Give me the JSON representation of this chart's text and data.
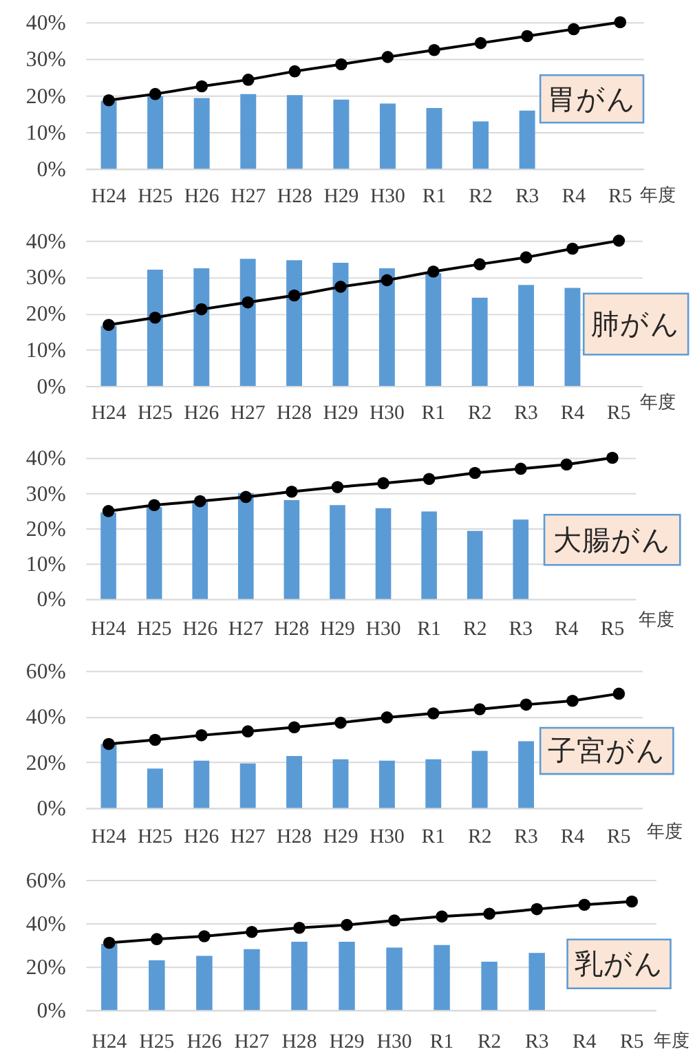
{
  "chart_data": [
    {
      "type": "bar",
      "title": "胃がん",
      "xlabel": "年度",
      "categories": [
        "H24",
        "H25",
        "H26",
        "H27",
        "H28",
        "H29",
        "H30",
        "R1",
        "R2",
        "R3",
        "R4",
        "R5"
      ],
      "series": [
        {
          "color": "#5b9bd5",
          "values": [
            18.5,
            19.8,
            19.3,
            20.4,
            20.1,
            18.9,
            17.8,
            16.6,
            12.9,
            15.9,
            null,
            null
          ]
        },
        {
          "type": "line",
          "color": "#000000",
          "values": [
            18.7,
            20.4,
            22.5,
            24.3,
            26.6,
            28.5,
            30.5,
            32.4,
            34.3,
            36.2,
            38.1,
            40
          ]
        }
      ],
      "ylim": [
        0,
        40
      ],
      "yticks": [
        {
          "value": 0,
          "label": "0%"
        },
        {
          "value": 10,
          "label": "10%"
        },
        {
          "value": 20,
          "label": "20%"
        },
        {
          "value": 30,
          "label": "30%"
        },
        {
          "value": 40,
          "label": "40%"
        }
      ],
      "grid": "y",
      "marker": "circle"
    },
    {
      "type": "bar",
      "title": "肺がん",
      "xlabel": "年度",
      "categories": [
        "H24",
        "H25",
        "H26",
        "H27",
        "H28",
        "H29",
        "H30",
        "R1",
        "R2",
        "R3",
        "R4",
        "R5"
      ],
      "series": [
        {
          "color": "#5b9bd5",
          "values": [
            16.5,
            32.0,
            32.4,
            35.0,
            34.6,
            33.9,
            32.4,
            31.0,
            24.3,
            27.8,
            27.0,
            null
          ]
        },
        {
          "type": "line",
          "color": "#000000",
          "values": [
            16.8,
            18.8,
            21.1,
            23.0,
            24.9,
            27.3,
            29.1,
            31.5,
            33.5,
            35.4,
            37.8,
            40
          ]
        }
      ],
      "ylim": [
        0,
        40
      ],
      "yticks": [
        {
          "value": 0,
          "label": "0%"
        },
        {
          "value": 10,
          "label": "10%"
        },
        {
          "value": 20,
          "label": "20%"
        },
        {
          "value": 30,
          "label": "30%"
        },
        {
          "value": 40,
          "label": "40%"
        }
      ],
      "grid": "y",
      "marker": "circle"
    },
    {
      "type": "bar",
      "title": "大腸がん",
      "xlabel": "年度",
      "categories": [
        "H24",
        "H25",
        "H26",
        "H27",
        "H28",
        "H29",
        "H30",
        "R1",
        "R2",
        "R3",
        "R4",
        "R5"
      ],
      "series": [
        {
          "color": "#5b9bd5",
          "values": [
            24.5,
            26.0,
            27.5,
            30.0,
            28.0,
            26.6,
            25.7,
            24.8,
            19.3,
            22.5,
            null,
            null
          ]
        },
        {
          "type": "line",
          "color": "#000000",
          "values": [
            24.9,
            26.6,
            27.7,
            28.9,
            30.4,
            31.7,
            32.8,
            34.0,
            35.7,
            36.9,
            38.1,
            40
          ]
        }
      ],
      "ylim": [
        0,
        40
      ],
      "yticks": [
        {
          "value": 0,
          "label": "0%"
        },
        {
          "value": 10,
          "label": "10%"
        },
        {
          "value": 20,
          "label": "20%"
        },
        {
          "value": 30,
          "label": "30%"
        },
        {
          "value": 40,
          "label": "40%"
        }
      ],
      "grid": "y",
      "marker": "circle"
    },
    {
      "type": "bar",
      "title": "子宮がん",
      "xlabel": "年度",
      "categories": [
        "H24",
        "H25",
        "H26",
        "H27",
        "H28",
        "H29",
        "H30",
        "R1",
        "R2",
        "R3",
        "R4",
        "R5"
      ],
      "series": [
        {
          "color": "#5b9bd5",
          "values": [
            28.0,
            17.2,
            20.7,
            19.5,
            22.7,
            21.3,
            20.7,
            21.3,
            25.0,
            29.2,
            null,
            null
          ]
        },
        {
          "type": "line",
          "color": "#000000",
          "values": [
            28.0,
            29.8,
            31.8,
            33.5,
            35.3,
            37.3,
            39.6,
            41.4,
            43.2,
            45.2,
            46.9,
            50
          ]
        }
      ],
      "ylim": [
        0,
        60
      ],
      "yticks": [
        {
          "value": 0,
          "label": "0%"
        },
        {
          "value": 20,
          "label": "20%"
        },
        {
          "value": 40,
          "label": "40%"
        },
        {
          "value": 60,
          "label": "60%"
        }
      ],
      "grid": "y",
      "marker": "circle"
    },
    {
      "type": "bar",
      "title": "乳がん",
      "xlabel": "年度",
      "categories": [
        "H24",
        "H25",
        "H26",
        "H27",
        "H28",
        "H29",
        "H30",
        "R1",
        "R2",
        "R3",
        "R4",
        "R5"
      ],
      "series": [
        {
          "color": "#5b9bd5",
          "values": [
            30.5,
            22.9,
            25.0,
            28.1,
            31.5,
            31.5,
            28.8,
            30.0,
            22.3,
            26.3,
            null,
            null
          ]
        },
        {
          "type": "line",
          "color": "#000000",
          "values": [
            31.0,
            32.7,
            34.0,
            36.0,
            37.9,
            39.2,
            41.3,
            43.1,
            44.4,
            46.5,
            48.5,
            50
          ]
        }
      ],
      "ylim": [
        0,
        60
      ],
      "yticks": [
        {
          "value": 0,
          "label": "0%"
        },
        {
          "value": 20,
          "label": "20%"
        },
        {
          "value": 40,
          "label": "40%"
        },
        {
          "value": 60,
          "label": "60%"
        }
      ],
      "grid": "y",
      "marker": "circle"
    }
  ]
}
